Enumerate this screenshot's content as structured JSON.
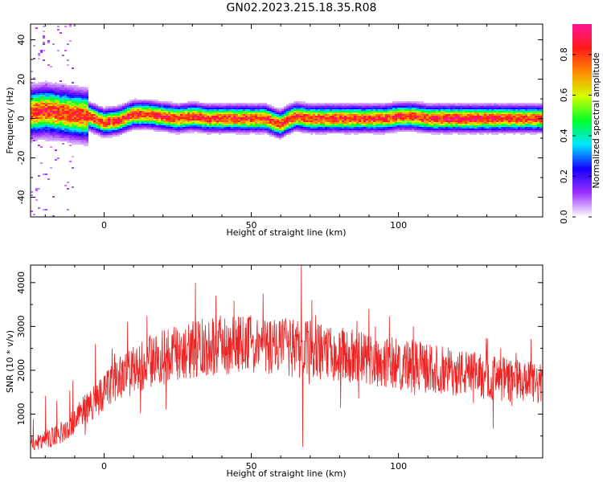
{
  "title": "GN02.2023.215.18.35.R08",
  "chart_data": [
    {
      "type": "heatmap",
      "xlabel": "Height of straight line (km)",
      "ylabel": "Frequency (Hz)",
      "xlim": [
        -25,
        149
      ],
      "ylim": [
        -50,
        48
      ],
      "x_ticks": [
        "0",
        "50",
        "100"
      ],
      "x_tick_values": [
        0,
        50,
        100
      ],
      "y_ticks": [
        "40",
        "20",
        "0",
        "-20",
        "-40"
      ],
      "y_tick_values": [
        40,
        20,
        0,
        -20,
        -40
      ],
      "colorbar": {
        "label": "Normalized spectral amplitude",
        "range": [
          0,
          0.95
        ],
        "ticks": [
          "0.0",
          "0.2",
          "0.4",
          "0.6",
          "0.8"
        ],
        "tick_values": [
          0,
          0.2,
          0.4,
          0.6,
          0.8
        ],
        "colors": [
          "#ffffff",
          "#9b30ff",
          "#1500ff",
          "#00e5ff",
          "#00ff2a",
          "#d4ff00",
          "#ff8a00",
          "#ff1a1a",
          "#ff1493"
        ]
      },
      "ridge": {
        "x": [
          -25,
          -20,
          -15,
          -10,
          -5,
          0,
          5,
          10,
          15,
          20,
          25,
          30,
          35,
          40,
          45,
          50,
          55,
          58,
          60,
          62,
          65,
          70,
          75,
          80,
          85,
          90,
          95,
          100,
          105,
          110,
          115,
          120,
          125,
          130,
          135,
          140,
          149
        ],
        "y": [
          3,
          4,
          3,
          2,
          1,
          -2,
          -1,
          2,
          2,
          1,
          0,
          1,
          0,
          0,
          0,
          0,
          0,
          -2,
          -3,
          -1,
          1,
          0,
          0,
          0,
          0,
          0,
          0,
          1,
          1,
          0,
          0,
          0,
          0,
          0,
          0,
          0,
          0
        ]
      }
    },
    {
      "type": "line",
      "xlabel": "Height of straight line (km)",
      "ylabel": "SNR (10 * v/v)",
      "xlim": [
        -25,
        149
      ],
      "ylim": [
        0,
        4400
      ],
      "x_ticks": [
        "0",
        "50",
        "100"
      ],
      "x_tick_values": [
        0,
        50,
        100
      ],
      "y_ticks": [
        "4000",
        "3000",
        "2000",
        "1000"
      ],
      "y_tick_values": [
        4000,
        3000,
        2000,
        1000
      ],
      "series": [
        {
          "color": "#ee2222",
          "trend_x": [
            -25,
            -15,
            -5,
            5,
            15,
            25,
            35,
            45,
            55,
            65,
            75,
            85,
            95,
            105,
            115,
            125,
            135,
            149
          ],
          "trend_y": [
            300,
            550,
            1200,
            1800,
            2200,
            2400,
            2550,
            2600,
            2550,
            2500,
            2400,
            2300,
            2200,
            2100,
            2000,
            1900,
            1800,
            1650
          ],
          "spikes": [
            {
              "x": -3,
              "y": 2600
            },
            {
              "x": 8,
              "y": 3100
            },
            {
              "x": 31,
              "y": 4000
            },
            {
              "x": 38,
              "y": 3700
            },
            {
              "x": 54,
              "y": 3750
            },
            {
              "x": 67,
              "y": 4400
            },
            {
              "x": 67.5,
              "y": 250
            },
            {
              "x": 90,
              "y": 3400
            },
            {
              "x": 105,
              "y": 3000
            },
            {
              "x": 140,
              "y": 2400
            }
          ]
        }
      ]
    }
  ]
}
